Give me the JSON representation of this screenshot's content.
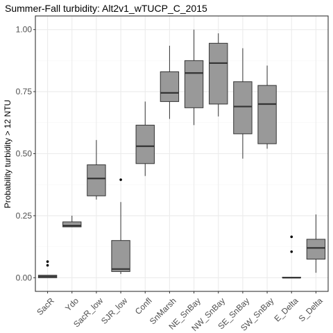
{
  "chart_data": {
    "type": "box",
    "title": "Summer-Fall turbidity: Alt2v1_wTUCP_C_2015",
    "xlabel": "",
    "ylabel": "Probability turbidity > 12 NTU",
    "ylim": [
      -0.055,
      1.055
    ],
    "yticks": [
      0.0,
      0.25,
      0.5,
      0.75,
      1.0
    ],
    "ytick_labels": [
      "0.00",
      "0.25",
      "0.50",
      "0.75",
      "1.00"
    ],
    "grid": true,
    "legend": "none",
    "categories": [
      "SacR",
      "Ydo",
      "SacR_low",
      "SJR_low",
      "Confl",
      "SnMarsh",
      "NE_SnBay",
      "NW_SnBay",
      "SE_SnBay",
      "SW_SnBay",
      "E_Delta",
      "S_Delta"
    ],
    "boxes": [
      {
        "category": "SacR",
        "min": 0.0,
        "q1": 0.0,
        "median": 0.005,
        "q3": 0.01,
        "max": 0.01,
        "outliers": [
          0.05,
          0.065
        ]
      },
      {
        "category": "Ydo",
        "min": 0.205,
        "q1": 0.205,
        "median": 0.21,
        "q3": 0.225,
        "max": 0.25,
        "outliers": []
      },
      {
        "category": "SacR_low",
        "min": 0.315,
        "q1": 0.33,
        "median": 0.4,
        "q3": 0.455,
        "max": 0.555,
        "outliers": []
      },
      {
        "category": "SJR_low",
        "min": 0.015,
        "q1": 0.025,
        "median": 0.035,
        "q3": 0.15,
        "max": 0.305,
        "outliers": [
          0.395
        ]
      },
      {
        "category": "Confl",
        "min": 0.41,
        "q1": 0.46,
        "median": 0.53,
        "q3": 0.615,
        "max": 0.71,
        "outliers": []
      },
      {
        "category": "SnMarsh",
        "min": 0.64,
        "q1": 0.71,
        "median": 0.745,
        "q3": 0.83,
        "max": 0.935,
        "outliers": []
      },
      {
        "category": "NE_SnBay",
        "min": 0.615,
        "q1": 0.685,
        "median": 0.825,
        "q3": 0.875,
        "max": 1.0,
        "outliers": []
      },
      {
        "category": "NW_SnBay",
        "min": 0.65,
        "q1": 0.7,
        "median": 0.865,
        "q3": 0.945,
        "max": 0.985,
        "outliers": []
      },
      {
        "category": "SE_SnBay",
        "min": 0.48,
        "q1": 0.58,
        "median": 0.69,
        "q3": 0.79,
        "max": 0.925,
        "outliers": []
      },
      {
        "category": "SW_SnBay",
        "min": 0.52,
        "q1": 0.54,
        "median": 0.7,
        "q3": 0.775,
        "max": 0.855,
        "outliers": []
      },
      {
        "category": "E_Delta",
        "min": 0.0,
        "q1": 0.0,
        "median": 0.0,
        "q3": 0.002,
        "max": 0.002,
        "outliers": [
          0.105,
          0.165
        ]
      },
      {
        "category": "S_Delta",
        "min": 0.02,
        "q1": 0.075,
        "median": 0.12,
        "q3": 0.155,
        "max": 0.255,
        "outliers": []
      }
    ],
    "colors": {
      "box_fill": "#999999",
      "box_stroke": "#333333",
      "panel_border": "#333333",
      "grid_major": "#ebebeb",
      "grid_minor": "#f5f5f5",
      "tick_label": "#4d4d4d"
    }
  }
}
